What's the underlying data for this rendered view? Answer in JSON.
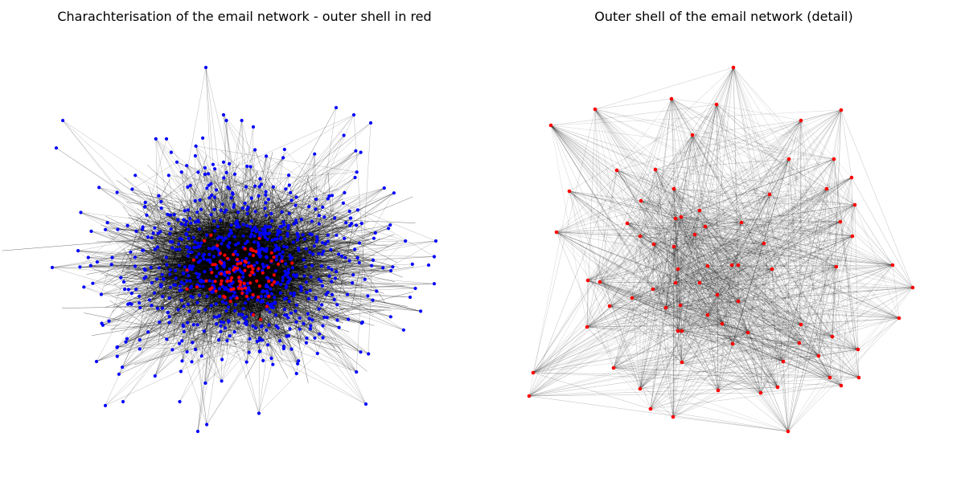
{
  "left": {
    "title": "Charachterisation of the email network - outer shell in red",
    "node_color": "#0000ff",
    "core_color": "#ff0000",
    "edge_color": "#000000"
  },
  "right": {
    "title": "Outer shell of the email network (detail)",
    "node_color": "#ff0000",
    "edge_color": "#000000"
  }
}
